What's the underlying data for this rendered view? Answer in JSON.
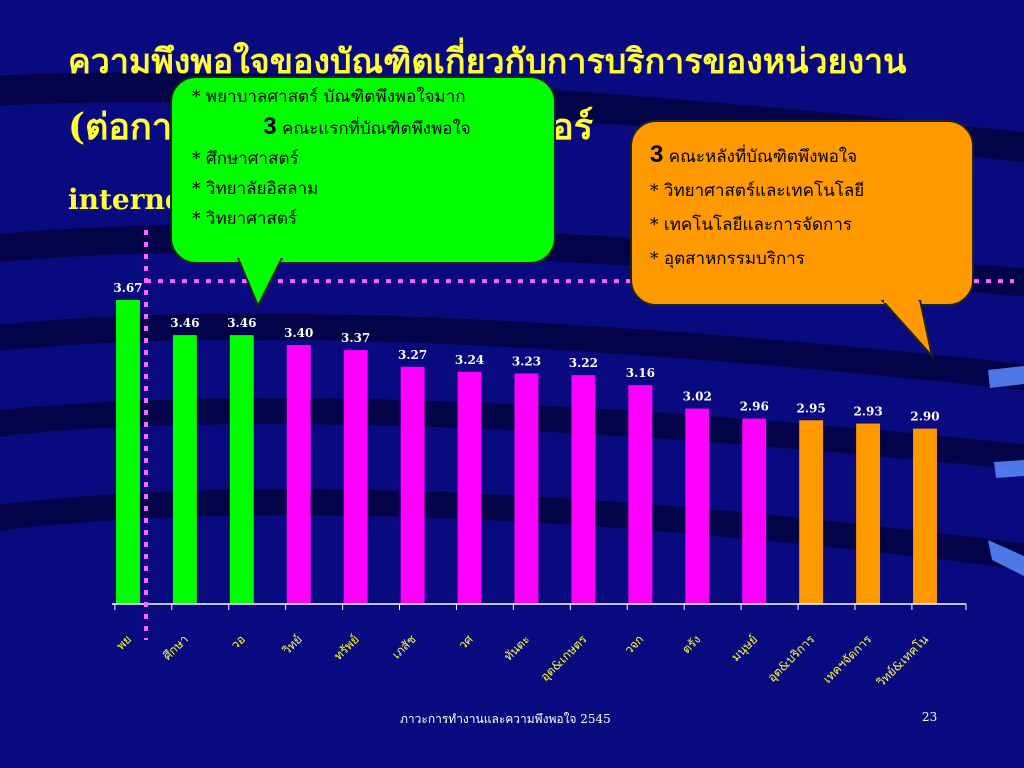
{
  "slide": {
    "title_line_1": "ความพึงพอใจของบัณฑิตเกี่ยวกับการบริการของหน่วยงาน",
    "title_line_2": "(ต่อกา เช่น ห้องสมุด คอมพิวเตอร์",
    "title_line_3": "interne ารกอ",
    "footer": "ภาวะการทำงานและความพึงพอใจ 2545",
    "page_number": "23",
    "background_color": "#0a0a80",
    "title_color": "#ffff33"
  },
  "callouts": {
    "left": {
      "color": "#00ff00",
      "line_1": "* พยาบาลศาสตร์ บัณฑิตพึงพอใจมาก",
      "line_2_num": "3",
      "line_2_text": " คณะแรกที่บัณฑิตพึงพอใจ",
      "items": [
        "*  ศึกษาศาสตร์",
        "*  วิทยาลัยอิสลาม",
        "*  วิทยาศาสตร์"
      ]
    },
    "right": {
      "color": "#ff9900",
      "line_1_num": "3",
      "line_1_text": " คณะหลังที่บัณฑิตพึงพอใจ",
      "items": [
        "* วิทยาศาสตร์และเทคโนโลยี",
        "* เทคโนโลยีและการจัดการ",
        "*  อุตสาหกรรมบริการ"
      ]
    }
  },
  "chart_data": {
    "type": "bar",
    "categories": [
      "พย",
      "ศึกษา",
      "วอ",
      "วิทย์",
      "ทรัพย์",
      "เภสัช",
      "วศ",
      "ทันตะ",
      "อุต&เกษตร",
      "วจก",
      "ตรัง",
      "มนุษย์",
      "อุต&บริการ",
      "เทคฯจัดการ",
      "วิทย์&เทคโน"
    ],
    "values": [
      3.67,
      3.46,
      3.46,
      3.4,
      3.37,
      3.27,
      3.24,
      3.23,
      3.22,
      3.16,
      3.02,
      2.96,
      2.95,
      2.93,
      2.9
    ],
    "value_labels": [
      "3.67",
      "3.46",
      "3.46",
      "3.40",
      "3.37",
      "3.27",
      "3.24",
      "3.23",
      "3.22",
      "3.16",
      "3.02",
      "2.96",
      "2.95",
      "2.93",
      "2.90"
    ],
    "bar_colors": [
      "#00ff00",
      "#00ff00",
      "#00ff00",
      "#ff00ff",
      "#ff00ff",
      "#ff00ff",
      "#ff00ff",
      "#ff00ff",
      "#ff00ff",
      "#ff00ff",
      "#ff00ff",
      "#ff00ff",
      "#ff9900",
      "#ff9900",
      "#ff9900"
    ],
    "ylim": [
      1.85,
      3.7
    ],
    "reference_value": 3.4,
    "reference_line_color": "#ff66ff",
    "axis_color": "#ffffff",
    "tick_label_color": "#ffff33",
    "title": "",
    "xlabel": "",
    "ylabel": "",
    "grid": false
  }
}
